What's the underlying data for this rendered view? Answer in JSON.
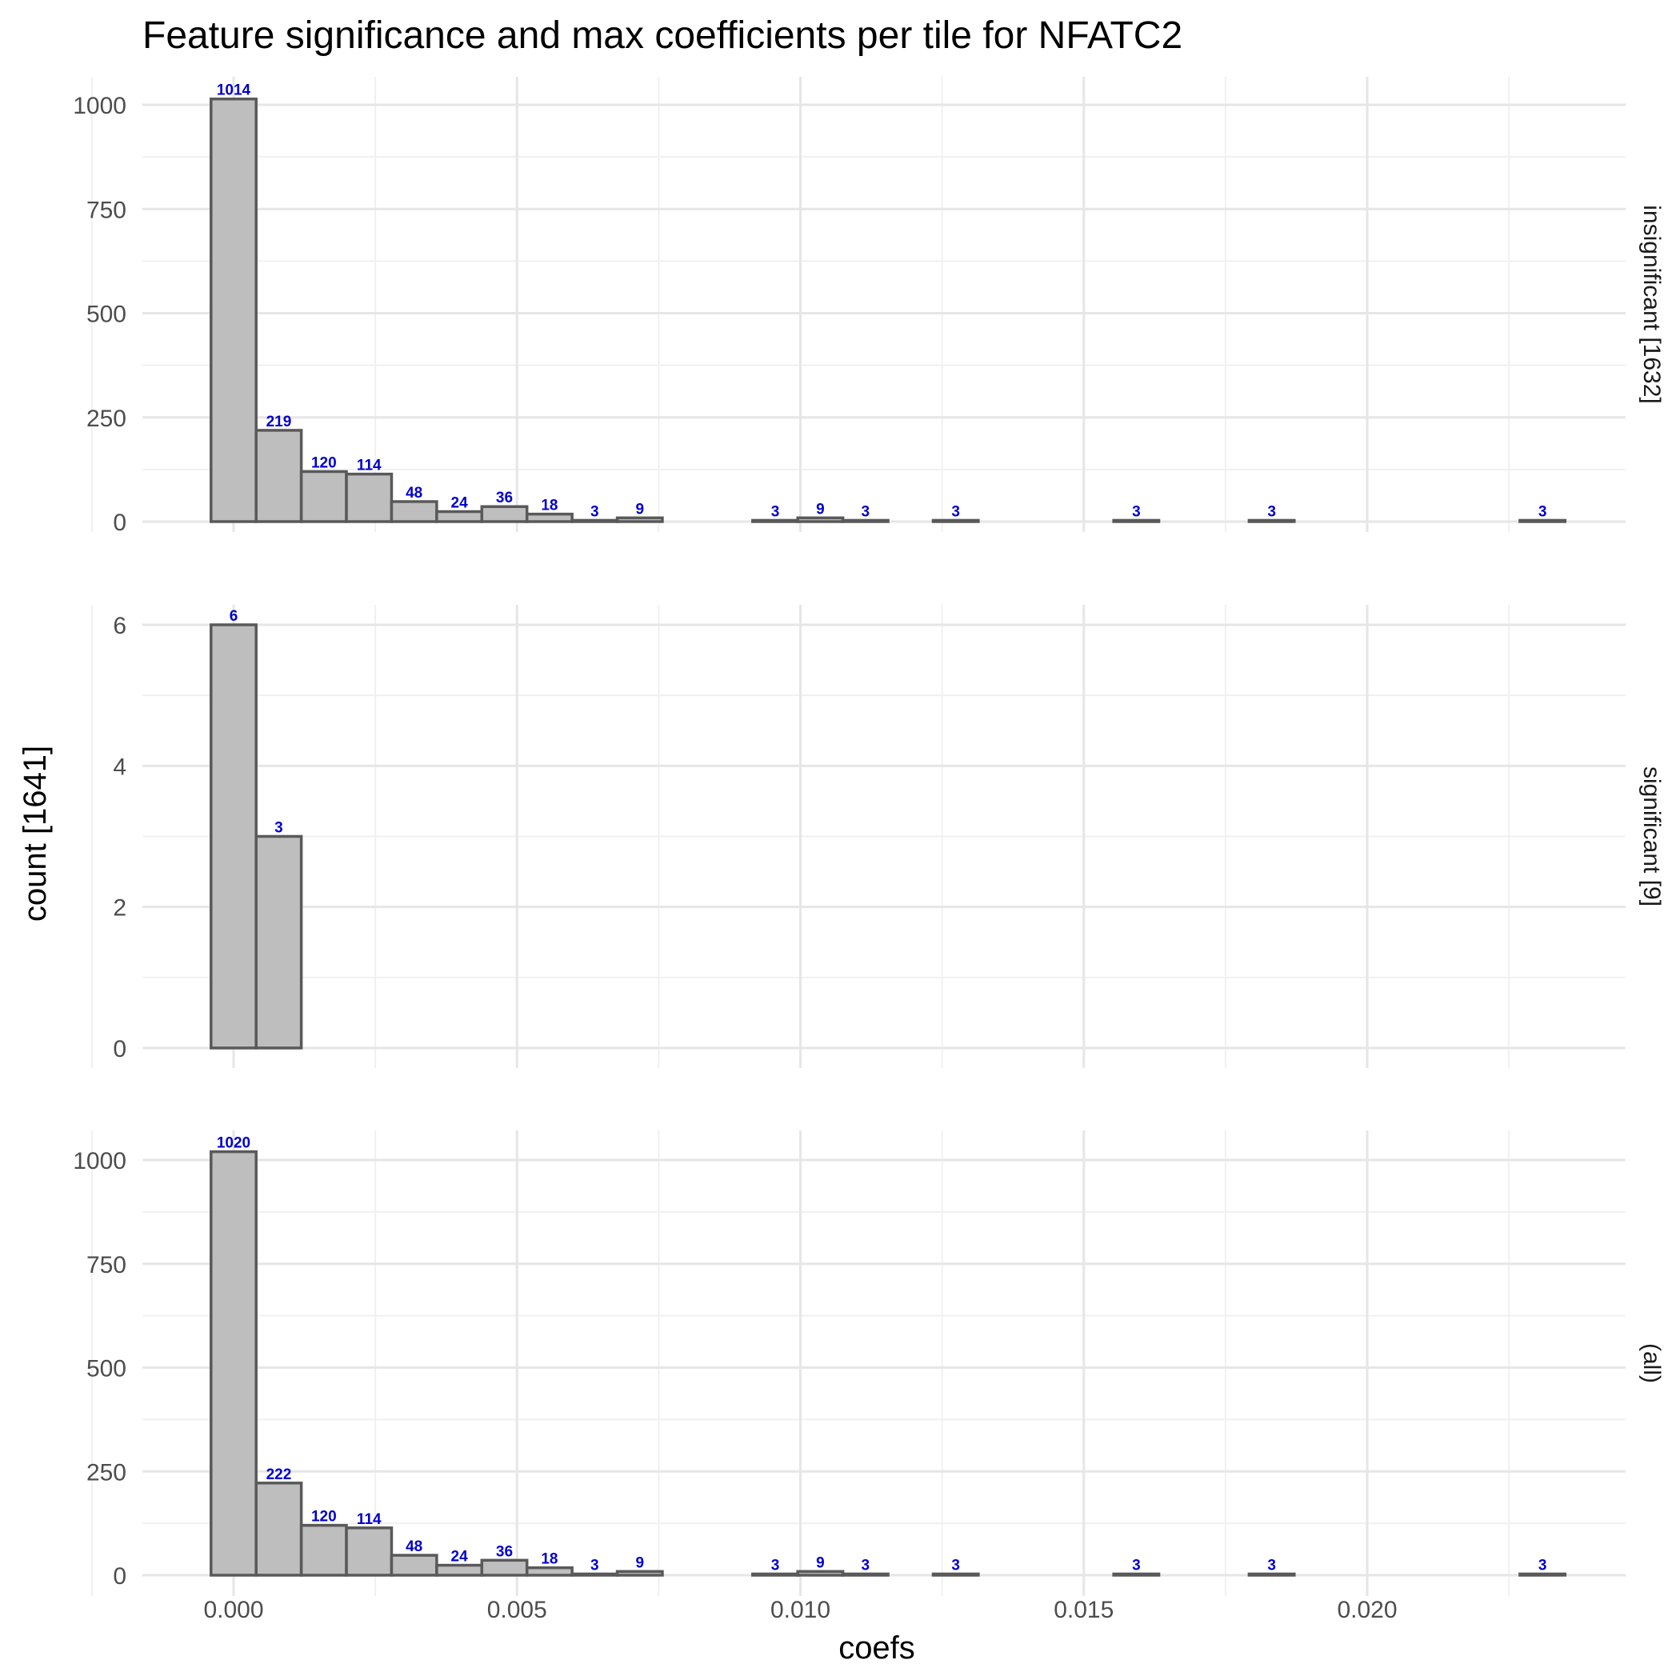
{
  "chart_data": {
    "type": "bar",
    "title": "Feature significance and max coefficients per tile for NFATC2",
    "xlabel": "coefs",
    "ylabel": "count [1641]",
    "xlim": [
      -0.0016,
      0.0245
    ],
    "x_ticks": [
      0.0,
      0.005,
      0.01,
      0.015,
      0.02
    ],
    "x_tick_labels": [
      "0.000",
      "0.005",
      "0.010",
      "0.015",
      "0.020"
    ],
    "bin_width": 0.0007963,
    "bin_start": -0.0003982,
    "n_bins": 30,
    "bar_fill": "#bebebe",
    "bar_stroke": "#595959",
    "label_color": "#0000cd",
    "grid": true,
    "panels": [
      {
        "strip": "insignificant [1632]",
        "ylim": [
          0,
          1060
        ],
        "y_ticks": [
          0,
          250,
          500,
          750,
          1000
        ],
        "y_tick_labels": [
          "0",
          "250",
          "500",
          "750",
          "1000"
        ],
        "counts": [
          1014,
          219,
          120,
          114,
          48,
          24,
          36,
          18,
          3,
          9,
          0,
          0,
          3,
          9,
          3,
          0,
          3,
          0,
          0,
          0,
          3,
          0,
          0,
          3,
          0,
          0,
          0,
          0,
          0,
          3
        ]
      },
      {
        "strip": "significant [9]",
        "ylim": [
          0,
          6.3
        ],
        "y_ticks": [
          0,
          2,
          4,
          6
        ],
        "y_tick_labels": [
          "0",
          "2",
          "4",
          "6"
        ],
        "counts": [
          6,
          3,
          0,
          0,
          0,
          0,
          0,
          0,
          0,
          0,
          0,
          0,
          0,
          0,
          0,
          0,
          0,
          0,
          0,
          0,
          0,
          0,
          0,
          0,
          0,
          0,
          0,
          0,
          0,
          0
        ]
      },
      {
        "strip": "(all)",
        "ylim": [
          0,
          1060
        ],
        "y_ticks": [
          0,
          250,
          500,
          750,
          1000
        ],
        "y_tick_labels": [
          "0",
          "250",
          "500",
          "750",
          "1000"
        ],
        "counts": [
          1020,
          222,
          120,
          114,
          48,
          24,
          36,
          18,
          3,
          9,
          0,
          0,
          3,
          9,
          3,
          0,
          3,
          0,
          0,
          0,
          3,
          0,
          0,
          3,
          0,
          0,
          0,
          0,
          0,
          3
        ]
      }
    ]
  }
}
